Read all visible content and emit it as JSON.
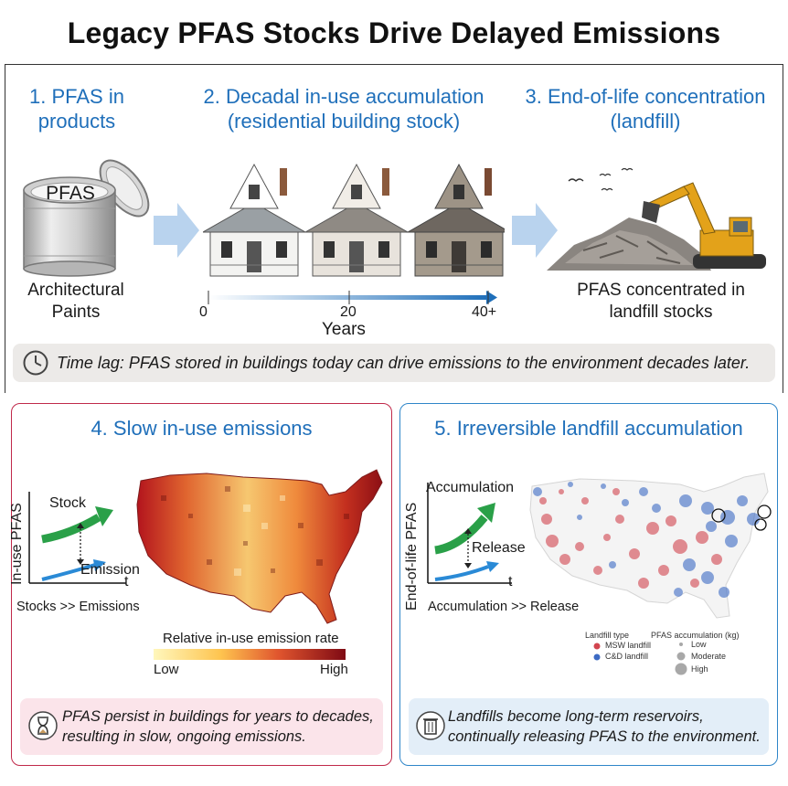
{
  "title": "Legacy PFAS Stocks Drive Delayed Emissions",
  "steps": {
    "s1": {
      "title_l1": "1. PFAS in",
      "title_l2": "products",
      "can_label": "PFAS",
      "caption_l1": "Architectural",
      "caption_l2": "Paints"
    },
    "s2": {
      "title_l1": "2. Decadal in-use accumulation",
      "title_l2": "(residential building stock)",
      "ticks": [
        "0",
        "20",
        "40+"
      ],
      "axis_label": "Years"
    },
    "s3": {
      "title_l1": "3. End-of-life concentration",
      "title_l2": "(landfill)",
      "caption_l1": "PFAS concentrated in",
      "caption_l2": "landfill stocks"
    }
  },
  "time_lag": "Time lag: PFAS stored in buildings today can drive emissions to the environment decades later.",
  "panel4": {
    "title": "4. Slow in-use emissions",
    "y_label": "In-use PFAS",
    "stock_label": "Stock",
    "emission_label": "Emission",
    "t_label": "t",
    "relation": "Stocks >> Emissions",
    "legend_title": "Relative in-use emission rate",
    "legend_low": "Low",
    "legend_high": "High",
    "note_l1": "PFAS persist in buildings for years to decades,",
    "note_l2": "resulting in slow, ongoing emissions."
  },
  "panel5": {
    "title": "5. Irreversible landfill accumulation",
    "y_label": "End-of-life PFAS",
    "accum_label": "Accumulation",
    "release_label": "Release",
    "t_label": "t",
    "relation": "Accumulation >> Release",
    "legend_type_title": "Landfill type",
    "legend_msw": "MSW landfill",
    "legend_cd": "C&D landfill",
    "legend_size_title": "PFAS accumulation (kg)",
    "legend_low": "Low",
    "legend_moderate": "Moderate",
    "legend_high": "High",
    "note_l1": "Landfills become long-term reservoirs,",
    "note_l2": "continually releasing PFAS to the environment."
  },
  "colors": {
    "accent_blue": "#1f6fba",
    "panel4_border": "#c0294a",
    "panel5_border": "#2f86c9",
    "msw": "#d2454f",
    "cd": "#3d6bc4",
    "stock_green": "#2aa048",
    "emission_blue": "#2a8ad6"
  },
  "icons": [
    "paint-can-icon",
    "arrow-right-icon",
    "house-icon",
    "landfill-excavator-icon",
    "clock-icon",
    "hourglass-icon",
    "trash-can-icon"
  ]
}
